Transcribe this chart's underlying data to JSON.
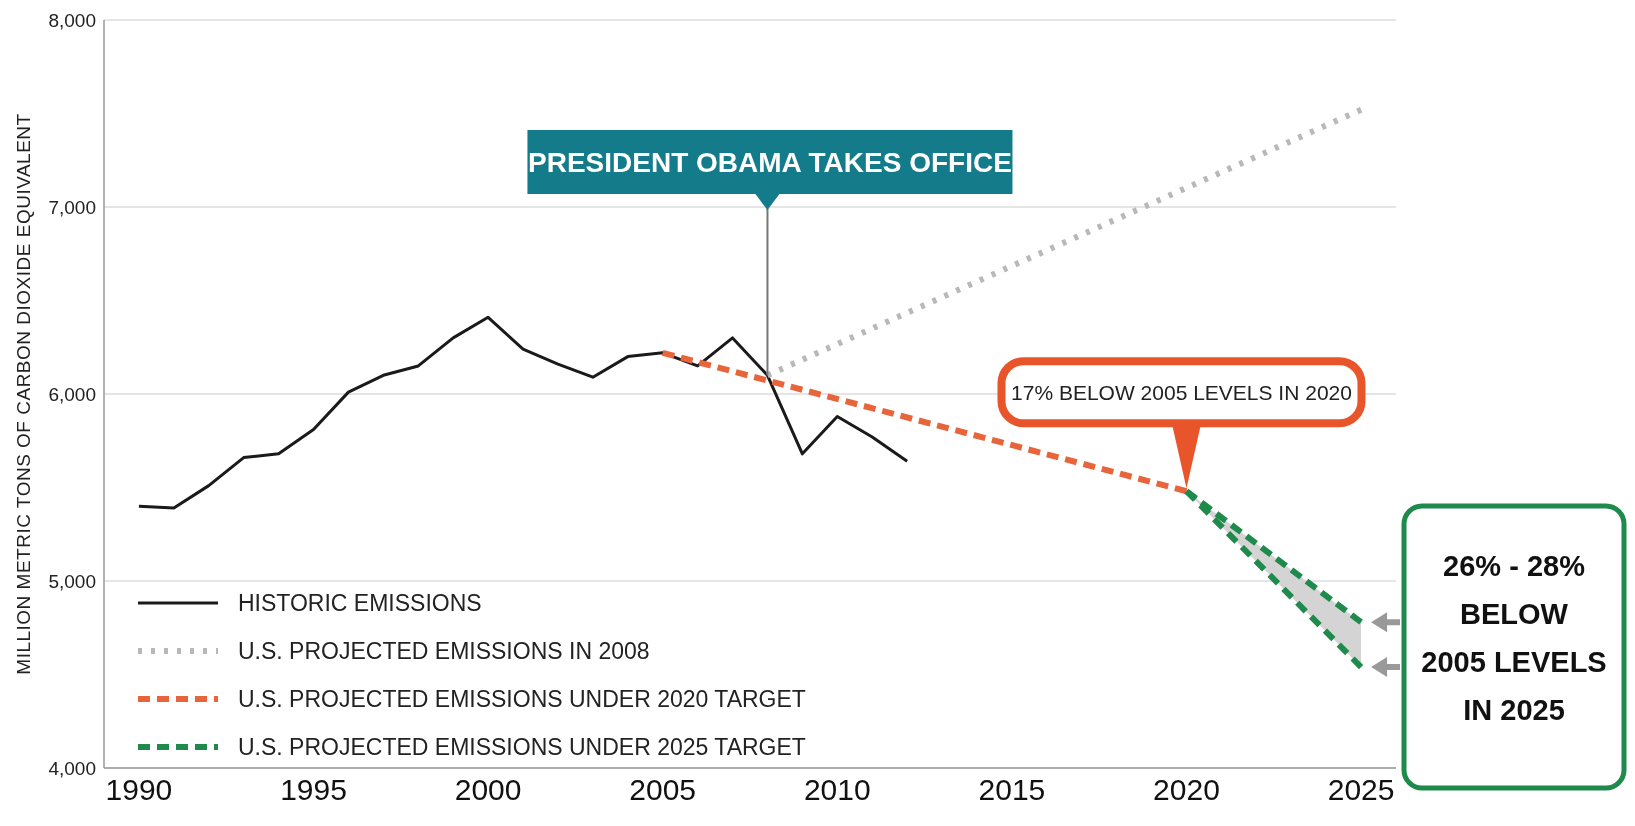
{
  "chart_data": {
    "type": "line",
    "ylabel": "MILLION METRIC TONS OF CARBON DIOXIDE EQUIVALENT",
    "xlim": [
      1989,
      2026
    ],
    "xticks": [
      1990,
      1995,
      2000,
      2005,
      2010,
      2015,
      2020,
      2025
    ],
    "ylim": [
      4000,
      8000
    ],
    "yticks": [
      {
        "value": 4000,
        "label": "4,000"
      },
      {
        "value": 5000,
        "label": "5,000"
      },
      {
        "value": 6000,
        "label": "6,000"
      },
      {
        "value": 7000,
        "label": "7,000"
      },
      {
        "value": 8000,
        "label": "8,000"
      }
    ],
    "grid": "y",
    "legend": "bottom left",
    "marker": "none",
    "series": [
      {
        "name": "HISTORIC EMISSIONS",
        "color": "#1a1a1a",
        "line_style": "solid",
        "x": [
          1990,
          1991,
          1992,
          1993,
          1994,
          1995,
          1996,
          1997,
          1998,
          1999,
          2000,
          2001,
          2002,
          2003,
          2004,
          2005,
          2006,
          2007,
          2008,
          2009,
          2010,
          2011,
          2012
        ],
        "values": [
          5400,
          5390,
          5510,
          5660,
          5680,
          5810,
          6010,
          6100,
          6150,
          6300,
          6410,
          6240,
          6160,
          6090,
          6200,
          6220,
          6150,
          6300,
          6100,
          5680,
          5880,
          5770,
          5640
        ]
      },
      {
        "name": "U.S. PROJECTED EMISSIONS IN 2008",
        "color": "#b8b8b8",
        "line_style": "dotted",
        "x": [
          2008,
          2025
        ],
        "values": [
          6100,
          7520
        ]
      },
      {
        "name": "U.S. PROJECTED EMISSIONS UNDER 2020 TARGET",
        "color": "#e8643a",
        "line_style": "dashed",
        "x": [
          2005,
          2020
        ],
        "values": [
          6220,
          5480
        ]
      },
      {
        "name": "U.S. PROJECTED EMISSIONS UNDER 2025 TARGET",
        "color": "#1e8a4c",
        "line_style": "dashed",
        "x": [
          2020,
          2025
        ],
        "values": [
          5480,
          4780
        ],
        "lower": [
          5480,
          4540
        ],
        "upper": [
          5480,
          4780
        ]
      },
      {
        "color": "#1e8a4c",
        "line_style": "dashed",
        "x": [
          2020,
          2025
        ],
        "values": [
          5480,
          4540
        ]
      }
    ],
    "annotations": [
      {
        "text": "PRESIDENT OBAMA TAKES OFFICE",
        "x": 2008,
        "y": 6100
      },
      {
        "text": "17% BELOW 2005 LEVELS IN 2020",
        "x": 2020,
        "y": 5480
      },
      "26% - 28% BELOW 2005 LEVELS IN 2025"
    ]
  }
}
